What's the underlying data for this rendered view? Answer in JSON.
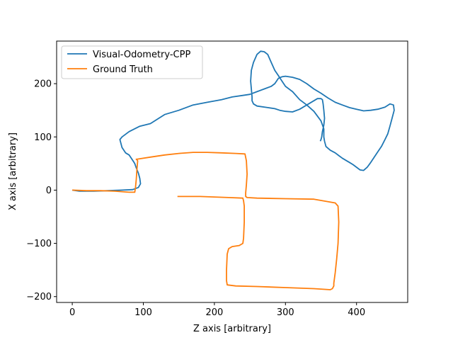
{
  "chart_data": {
    "type": "line",
    "title": "",
    "xlabel": "Z axis [arbitrary]",
    "ylabel": "X axis [arbitrary]",
    "xlim": [
      -22,
      472
    ],
    "ylim": [
      -211,
      280
    ],
    "xticks": [
      0,
      100,
      200,
      300,
      400
    ],
    "yticks": [
      -200,
      -100,
      0,
      100,
      200
    ],
    "grid": false,
    "legend": "top-left",
    "series": [
      {
        "name": "Visual-Odometry-CPP",
        "color": "#1f77b4",
        "x": [
          0,
          10,
          30,
          50,
          70,
          85,
          93,
          96,
          95,
          93,
          90,
          88,
          85,
          82,
          80,
          75,
          70,
          67,
          70,
          80,
          95,
          110,
          130,
          150,
          170,
          190,
          210,
          225,
          240,
          250,
          260,
          270,
          280,
          285,
          290,
          295,
          300,
          310,
          320,
          330,
          340,
          350,
          360,
          370,
          380,
          390,
          400,
          410,
          420,
          430,
          440,
          447,
          452,
          453,
          450,
          447,
          444,
          440,
          435,
          430,
          425,
          420,
          415,
          410,
          405,
          400,
          395,
          390,
          385,
          380,
          375,
          370,
          363,
          357,
          355,
          354,
          354,
          350,
          340,
          330,
          320,
          310,
          300,
          295,
          290,
          285,
          280,
          275,
          270,
          265,
          260,
          255,
          252,
          251,
          252,
          253,
          253,
          254,
          255,
          260,
          275,
          285,
          292,
          300,
          310,
          320,
          330,
          340,
          345,
          350,
          352,
          353,
          354,
          355,
          354,
          352,
          351,
          350,
          349
        ],
        "y": [
          0,
          -2,
          -2,
          -1,
          0,
          1,
          5,
          12,
          22,
          32,
          42,
          50,
          56,
          62,
          66,
          70,
          80,
          95,
          100,
          110,
          120,
          125,
          142,
          150,
          160,
          165,
          170,
          175,
          178,
          180,
          185,
          190,
          195,
          200,
          210,
          213,
          214,
          212,
          208,
          200,
          190,
          182,
          173,
          165,
          160,
          155,
          152,
          149,
          150,
          152,
          156,
          162,
          160,
          150,
          135,
          120,
          106,
          95,
          82,
          72,
          62,
          52,
          43,
          37,
          38,
          43,
          48,
          52,
          56,
          60,
          65,
          70,
          75,
          82,
          92,
          100,
          115,
          130,
          148,
          160,
          170,
          185,
          195,
          205,
          215,
          225,
          240,
          255,
          260,
          261,
          255,
          240,
          225,
          205,
          190,
          175,
          168,
          165,
          162,
          158,
          155,
          153,
          150,
          148,
          147,
          152,
          160,
          168,
          172,
          172,
          170,
          162,
          150,
          135,
          122,
          110,
          100,
          95,
          92
        ]
      },
      {
        "name": "Ground Truth",
        "color": "#ff7f0e",
        "x": [
          0,
          20,
          40,
          60,
          80,
          88,
          89,
          90,
          91,
          92,
          91,
          90,
          90,
          91,
          95,
          110,
          130,
          150,
          170,
          190,
          210,
          230,
          243,
          245,
          246,
          245,
          244,
          244,
          246,
          260,
          300,
          340,
          370,
          374,
          375,
          374,
          372,
          370,
          368,
          368,
          366,
          363,
          340,
          300,
          260,
          230,
          218,
          217,
          217,
          218,
          220,
          225,
          235,
          240,
          241,
          242,
          242,
          241,
          240,
          220,
          180,
          148
        ],
        "y": [
          0,
          -1,
          -1,
          -2,
          -4,
          -4,
          5,
          20,
          40,
          55,
          57,
          58,
          58,
          58,
          59,
          62,
          66,
          69,
          71,
          71,
          70,
          69,
          68,
          55,
          30,
          10,
          -5,
          -12,
          -14,
          -15,
          -16,
          -17,
          -24,
          -30,
          -60,
          -100,
          -130,
          -155,
          -175,
          -180,
          -185,
          -187,
          -185,
          -183,
          -181,
          -180,
          -178,
          -170,
          -150,
          -120,
          -110,
          -106,
          -104,
          -100,
          -90,
          -60,
          -30,
          -20,
          -15,
          -14,
          -12,
          -12
        ]
      }
    ]
  }
}
